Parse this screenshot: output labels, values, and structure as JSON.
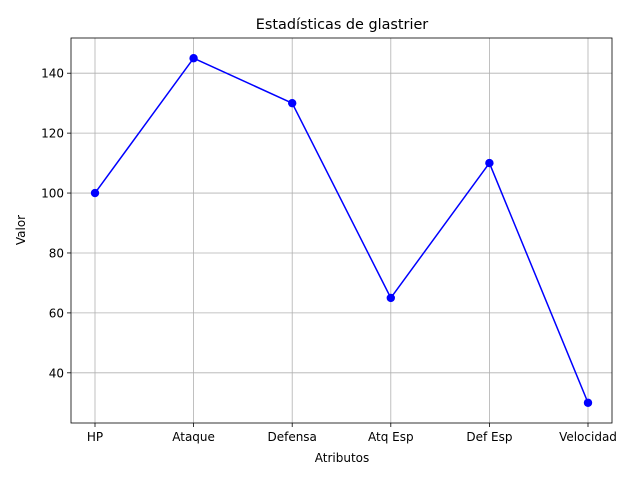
{
  "chart_data": {
    "type": "line",
    "title": "Estadísticas de glastrier",
    "xlabel": "Atributos",
    "ylabel": "Valor",
    "categories": [
      "HP",
      "Ataque",
      "Defensa",
      "Atq Esp",
      "Def Esp",
      "Velocidad"
    ],
    "series": [
      {
        "values": [
          100,
          145,
          130,
          65,
          110,
          30
        ],
        "color": "#0000ff",
        "marker": "circle"
      }
    ],
    "ylim": [
      23.25,
      151.75
    ],
    "yticks": [
      40,
      60,
      80,
      100,
      120,
      140
    ],
    "grid": true,
    "legend": "none"
  }
}
